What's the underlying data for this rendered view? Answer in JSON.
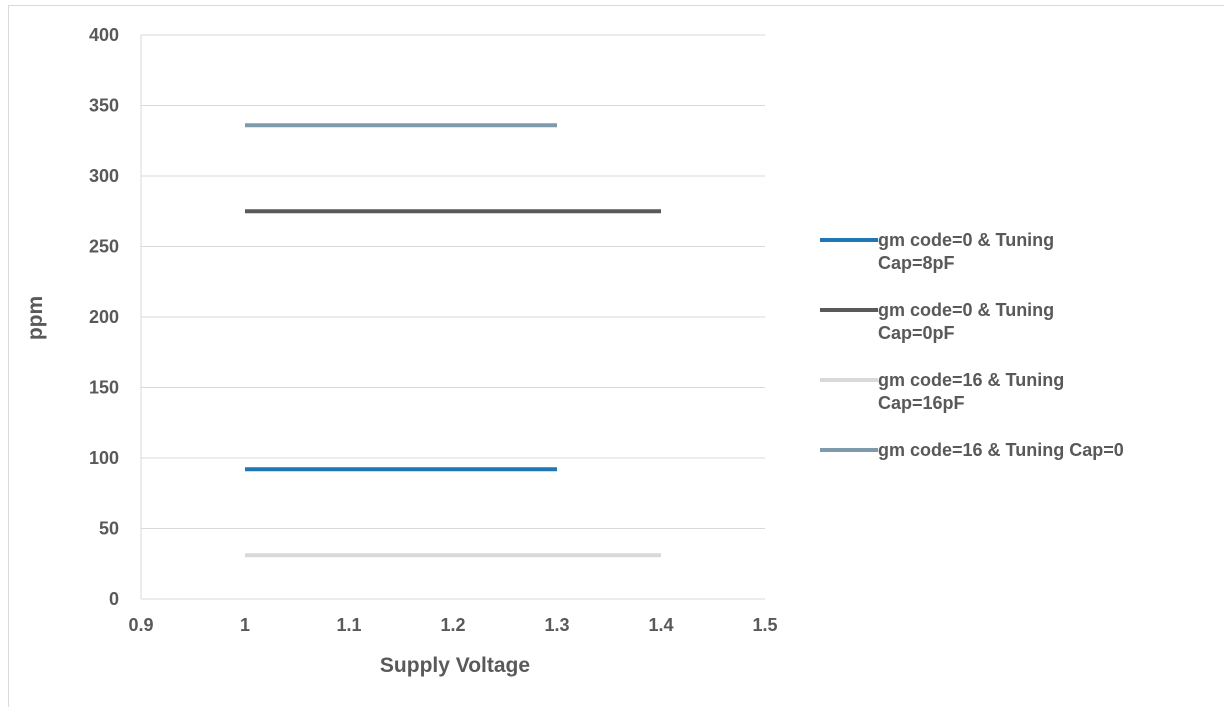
{
  "chart_data": {
    "type": "line",
    "title": "",
    "xlabel": "Supply Voltage",
    "ylabel": "ppm",
    "xlim": [
      0.9,
      1.5
    ],
    "ylim": [
      0,
      400
    ],
    "x_ticks": [
      "0.9",
      "1",
      "1.1",
      "1.2",
      "1.3",
      "1.4",
      "1.5"
    ],
    "y_ticks": [
      "0",
      "50",
      "100",
      "150",
      "200",
      "250",
      "300",
      "350",
      "400"
    ],
    "grid": "horizontal",
    "legend_position": "right",
    "series": [
      {
        "name": "gm code=0 & Tuning Cap=8pF",
        "legend_lines": [
          "gm code=0 & Tuning",
          "Cap=8pF"
        ],
        "color": "#1f77b4",
        "x": [
          1.0,
          1.1,
          1.2,
          1.3
        ],
        "y": [
          92,
          92,
          92,
          92
        ]
      },
      {
        "name": "gm code=0 & Tuning Cap=0pF",
        "legend_lines": [
          "gm code=0 & Tuning",
          "Cap=0pF"
        ],
        "color": "#595959",
        "x": [
          1.0,
          1.1,
          1.2,
          1.3,
          1.4
        ],
        "y": [
          275,
          275,
          275,
          275,
          275
        ]
      },
      {
        "name": "gm code=16 & Tuning Cap=16pF",
        "legend_lines": [
          "gm code=16 & Tuning",
          "Cap=16pF"
        ],
        "color": "#d9d9d9",
        "x": [
          1.0,
          1.1,
          1.2,
          1.3,
          1.4
        ],
        "y": [
          31,
          31,
          31,
          31,
          31
        ]
      },
      {
        "name": "gm code=16 & Tuning Cap=0",
        "legend_lines": [
          "gm code=16 & Tuning Cap=0"
        ],
        "color": "#7f9aab",
        "x": [
          1.0,
          1.1,
          1.2,
          1.3
        ],
        "y": [
          336,
          336,
          336,
          336
        ]
      }
    ]
  }
}
